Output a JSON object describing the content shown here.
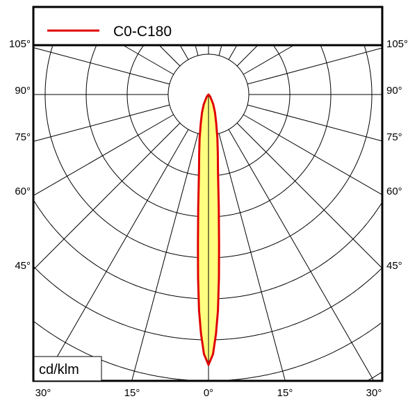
{
  "chart_data": {
    "type": "polar",
    "title": "",
    "unit_label": "cd/klm",
    "legend": {
      "position": "top",
      "entries": [
        {
          "name": "C0-C180",
          "color": "#e00000"
        }
      ]
    },
    "fill_color": "#ffff80",
    "grid": true,
    "angle_step_deg": 15,
    "left_angle_labels": [
      "105°",
      "90°",
      "75°",
      "60°",
      "45°"
    ],
    "right_angle_labels": [
      "105°",
      "90°",
      "75°",
      "60°",
      "45°"
    ],
    "bottom_angle_labels": [
      "30°",
      "15°",
      "0°",
      "15°",
      "30°"
    ],
    "series": [
      {
        "name": "C0-C180",
        "angles_deg": [
          0,
          1,
          1.8,
          2.5,
          3.25,
          4,
          5.2,
          7,
          9,
          11.5,
          15,
          20,
          26,
          40,
          90
        ],
        "relative_intensity": [
          1.0,
          0.96,
          0.885,
          0.8,
          0.68,
          0.56,
          0.42,
          0.29,
          0.22,
          0.165,
          0.11,
          0.07,
          0.04,
          0.01,
          0
        ]
      }
    ]
  }
}
